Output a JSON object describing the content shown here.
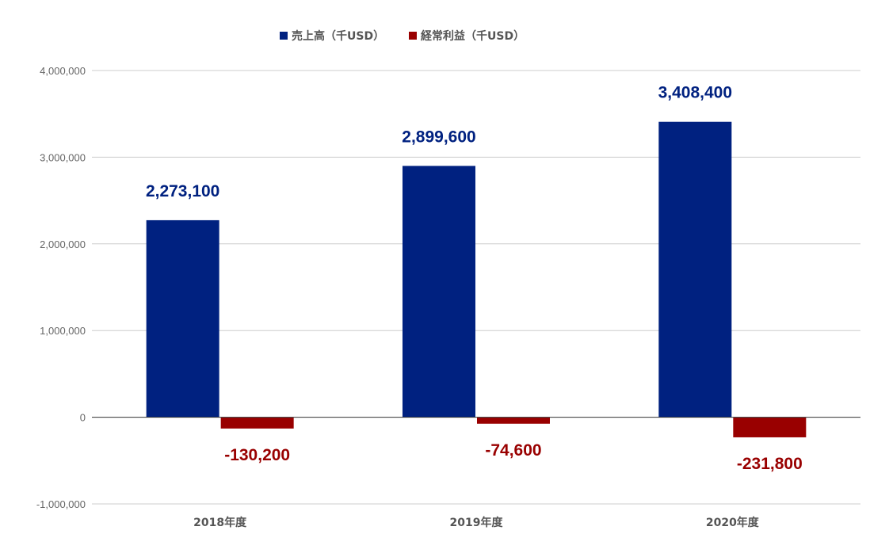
{
  "chart_data": {
    "type": "bar",
    "categories": [
      "2018年度",
      "2019年度",
      "2020年度"
    ],
    "series": [
      {
        "name": "売上高（千USD）",
        "color": "#002180",
        "values": [
          2273100,
          2899600,
          3408400
        ],
        "labels": [
          "2,273,100",
          "2,899,600",
          "3,408,400"
        ]
      },
      {
        "name": "経常利益（千USD）",
        "color": "#990000",
        "values": [
          -130200,
          -74600,
          -231800
        ],
        "labels": [
          "-130,200",
          "-74,600",
          "-231,800"
        ]
      }
    ],
    "ylim": [
      -1000000,
      4000000
    ],
    "yticks": [
      -1000000,
      0,
      1000000,
      2000000,
      3000000,
      4000000
    ],
    "ytick_labels": [
      "-1,000,000",
      "0",
      "1,000,000",
      "2,000,000",
      "3,000,000",
      "4,000,000"
    ],
    "grid": true,
    "legend_position": "top"
  }
}
